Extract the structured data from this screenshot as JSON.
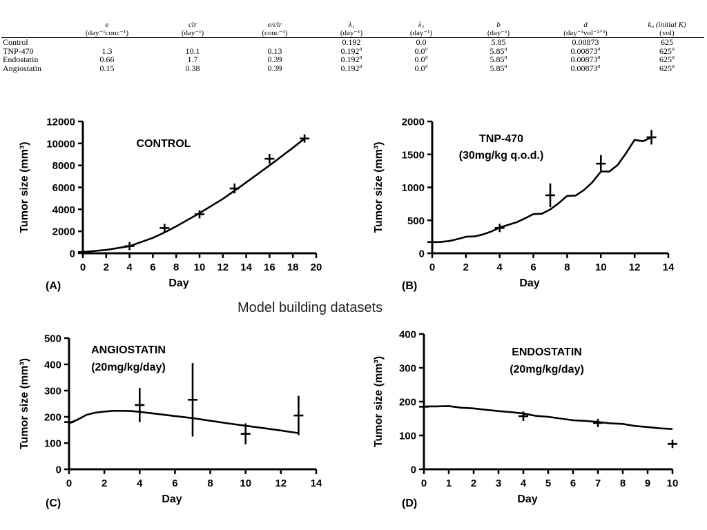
{
  "table": {
    "headers": [
      {
        "sym": "",
        "unit": ""
      },
      {
        "sym": "e",
        "unit": "(day⁻¹conc⁻¹)"
      },
      {
        "sym": "clr",
        "unit": "(day⁻¹)"
      },
      {
        "sym": "e/clr",
        "unit": "(conc⁻¹)"
      },
      {
        "sym": "λ₁",
        "unit": "(day⁻¹)"
      },
      {
        "sym": "λ₂",
        "unit": "(day⁻¹)"
      },
      {
        "sym": "b",
        "unit": "(day⁻¹)"
      },
      {
        "sym": "d",
        "unit": "(day⁻¹vol⁻²ᐟ³)"
      },
      {
        "sym": "k₀ (initial K)",
        "unit": "(vol)"
      }
    ],
    "rows": [
      {
        "label": "Control",
        "cells": [
          {
            "v": ""
          },
          {
            "v": ""
          },
          {
            "v": ""
          },
          {
            "v": "0.192"
          },
          {
            "v": "0.0"
          },
          {
            "v": "5.85"
          },
          {
            "v": "0.00873"
          },
          {
            "v": "625"
          }
        ]
      },
      {
        "label": "TNP-470",
        "cells": [
          {
            "v": "1.3"
          },
          {
            "v": "10.1"
          },
          {
            "v": "0.13"
          },
          {
            "v": "0.192",
            "sup": "a"
          },
          {
            "v": "0.0",
            "sup": "a"
          },
          {
            "v": "5.85",
            "sup": "a"
          },
          {
            "v": "0.00873",
            "sup": "a"
          },
          {
            "v": "625",
            "sup": "a"
          }
        ]
      },
      {
        "label": "Endostatin",
        "cells": [
          {
            "v": "0.66"
          },
          {
            "v": "1.7"
          },
          {
            "v": "0.39"
          },
          {
            "v": "0.192",
            "sup": "a"
          },
          {
            "v": "0.0",
            "sup": "a"
          },
          {
            "v": "5.85",
            "sup": "a"
          },
          {
            "v": "0.00873",
            "sup": "a"
          },
          {
            "v": "625",
            "sup": "a"
          }
        ]
      },
      {
        "label": "Angiostatin",
        "cells": [
          {
            "v": "0.15"
          },
          {
            "v": "0.38"
          },
          {
            "v": "0.39"
          },
          {
            "v": "0.192",
            "sup": "a"
          },
          {
            "v": "0.0",
            "sup": "a"
          },
          {
            "v": "5.85",
            "sup": "a"
          },
          {
            "v": "0.00873",
            "sup": "a"
          },
          {
            "v": "625",
            "sup": "a"
          }
        ]
      }
    ]
  },
  "caption": "Model building datasets",
  "chart_data": [
    {
      "id": "A",
      "type": "line",
      "panel_label": "(A)",
      "title": "CONTROL",
      "subtitle": "",
      "xlabel": "Day",
      "ylabel": "Tumor size (mm³)",
      "xlim": [
        0,
        20
      ],
      "ylim": [
        0,
        12000
      ],
      "xticks": [
        0,
        2,
        4,
        6,
        8,
        10,
        12,
        14,
        16,
        18,
        20
      ],
      "yticks": [
        0,
        2000,
        4000,
        6000,
        8000,
        10000,
        12000
      ],
      "model_curve": {
        "x": [
          0,
          2,
          4,
          6,
          7,
          8,
          10,
          12,
          13,
          14,
          16,
          18,
          19
        ],
        "y": [
          120,
          300,
          650,
          1400,
          1900,
          2450,
          3650,
          4950,
          5700,
          6450,
          8000,
          9600,
          10450
        ]
      },
      "observed": [
        {
          "x": 0,
          "y": 110,
          "err": 0
        },
        {
          "x": 4,
          "y": 650,
          "err": 0
        },
        {
          "x": 7,
          "y": 2300,
          "err": 300
        },
        {
          "x": 10,
          "y": 3550,
          "err": 200
        },
        {
          "x": 13,
          "y": 5900,
          "err": 450
        },
        {
          "x": 16,
          "y": 8600,
          "err": 450
        },
        {
          "x": 19,
          "y": 10450,
          "err": 350
        }
      ]
    },
    {
      "id": "B",
      "type": "line",
      "panel_label": "(B)",
      "title": "TNP-470",
      "subtitle": "(30mg/kg q.o.d.)",
      "xlabel": "Day",
      "ylabel": "Tumor size (mm³)",
      "xlim": [
        0,
        14
      ],
      "ylim": [
        0,
        2000
      ],
      "xticks": [
        0,
        2,
        4,
        6,
        8,
        10,
        12,
        14
      ],
      "yticks": [
        0,
        500,
        1000,
        1500,
        2000
      ],
      "model_curve": {
        "x": [
          0,
          0.5,
          1,
          1.5,
          2,
          2.5,
          3,
          3.5,
          4,
          4.5,
          5,
          5.5,
          6,
          6.5,
          7,
          7.5,
          8,
          8.5,
          9,
          9.5,
          10,
          10.5,
          11,
          11.5,
          12,
          12.5,
          13
        ],
        "y": [
          170,
          172,
          185,
          215,
          250,
          255,
          285,
          330,
          390,
          430,
          470,
          530,
          595,
          600,
          665,
          760,
          870,
          875,
          960,
          1080,
          1240,
          1240,
          1340,
          1520,
          1720,
          1700,
          1760
        ]
      },
      "observed": [
        {
          "x": 0,
          "y": 170,
          "err": 0
        },
        {
          "x": 4,
          "y": 385,
          "err": 50
        },
        {
          "x": 7,
          "y": 880,
          "err": 180
        },
        {
          "x": 10,
          "y": 1360,
          "err": 130
        },
        {
          "x": 13,
          "y": 1760,
          "err": 110
        }
      ]
    },
    {
      "id": "C",
      "type": "line",
      "panel_label": "(C)",
      "title": "ANGIOSTATIN",
      "subtitle": "(20mg/kg/day)",
      "xlabel": "Day",
      "ylabel": "Tumor size (mm³)",
      "xlim": [
        0,
        14
      ],
      "ylim": [
        0,
        500
      ],
      "xticks": [
        0,
        2,
        4,
        6,
        8,
        10,
        12,
        14
      ],
      "yticks": [
        0,
        100,
        200,
        300,
        400,
        500
      ],
      "model_curve": {
        "x": [
          0,
          0.5,
          1,
          1.5,
          2,
          2.5,
          3,
          3.5,
          4,
          5,
          6,
          7,
          8,
          9,
          10,
          11,
          12,
          13
        ],
        "y": [
          175,
          190,
          208,
          216,
          220,
          223,
          223,
          222,
          219,
          211,
          203,
          195,
          185,
          175,
          166,
          157,
          148,
          138
        ]
      },
      "observed": [
        {
          "x": 0,
          "y": 180,
          "err": 20
        },
        {
          "x": 4,
          "y": 245,
          "err": 65
        },
        {
          "x": 7,
          "y": 265,
          "err": 140
        },
        {
          "x": 10,
          "y": 135,
          "err": 40
        },
        {
          "x": 13,
          "y": 205,
          "err": 75
        }
      ]
    },
    {
      "id": "D",
      "type": "line",
      "panel_label": "(D)",
      "title": "ENDOSTATIN",
      "subtitle": "(20mg/kg/day)",
      "xlabel": "Day",
      "ylabel": "Tumor size (mm³)",
      "xlim": [
        0,
        10
      ],
      "ylim": [
        0,
        400
      ],
      "xticks": [
        0,
        1,
        2,
        3,
        4,
        5,
        6,
        7,
        8,
        9,
        10
      ],
      "yticks": [
        0,
        100,
        200,
        300,
        400
      ],
      "model_curve": {
        "x": [
          0,
          0.5,
          1,
          1.5,
          2,
          2.5,
          3,
          3.5,
          4,
          4.5,
          5,
          5.5,
          6,
          6.5,
          7,
          7.5,
          8,
          8.5,
          9,
          9.5,
          10
        ],
        "y": [
          186,
          186,
          187,
          182,
          180,
          176,
          172,
          169,
          165,
          158,
          155,
          150,
          145,
          143,
          140,
          136,
          134,
          128,
          125,
          121,
          119
        ]
      },
      "observed": [
        {
          "x": 0,
          "y": 185,
          "err": 12
        },
        {
          "x": 4,
          "y": 157,
          "err": 14
        },
        {
          "x": 7,
          "y": 137,
          "err": 10
        },
        {
          "x": 10,
          "y": 75,
          "err": 10
        }
      ]
    }
  ]
}
